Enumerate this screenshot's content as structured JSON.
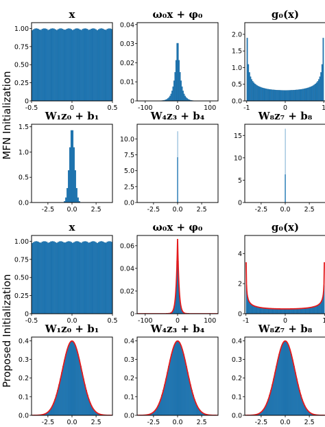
{
  "figure": {
    "row_labels": [
      "MFN Initialization",
      "Proposed Initialization"
    ],
    "colors": {
      "bar": "#1f77b4",
      "curve": "#e41a1c",
      "axis": "#000000"
    }
  },
  "chart_data": [
    {
      "type": "bar",
      "group": "MFN Initialization",
      "title": "x",
      "xlim": [
        -0.5,
        0.5
      ],
      "ylim": [
        0,
        1.08
      ],
      "xticks": [
        "-0.5",
        "0",
        "0.5"
      ],
      "xtick_values": [
        -0.5,
        0,
        0.5
      ],
      "yticks": [
        "0",
        "0.25",
        "0.50",
        "0.75",
        "1.00"
      ],
      "ytick_values": [
        0,
        0.25,
        0.5,
        0.75,
        1.0
      ],
      "distribution": "uniform",
      "height": 1.0,
      "range": [
        -0.5,
        0.5
      ],
      "overlay_curve": false
    },
    {
      "type": "bar",
      "group": "MFN Initialization",
      "title": "ω₀x + φ₀",
      "xlim": [
        -125,
        125
      ],
      "ylim": [
        0,
        0.041
      ],
      "xticks": [
        "-100",
        "0",
        "100"
      ],
      "xtick_values": [
        -100,
        0,
        100
      ],
      "yticks": [
        "0",
        "0.01",
        "0.02",
        "0.03",
        "0.04"
      ],
      "ytick_values": [
        0,
        0.01,
        0.02,
        0.03,
        0.04
      ],
      "distribution": "laplace-like",
      "peak": 0.036,
      "scale": 9,
      "overlay_curve": false
    },
    {
      "type": "bar",
      "group": "MFN Initialization",
      "title": "g₀(x)",
      "xlim": [
        -1.05,
        1.05
      ],
      "ylim": [
        0,
        2.35
      ],
      "xticks": [
        "-1",
        "0",
        "1"
      ],
      "xtick_values": [
        -1,
        0,
        1
      ],
      "yticks": [
        "0.0",
        "0.5",
        "1.0",
        "1.5",
        "2.0"
      ],
      "ytick_values": [
        0,
        0.5,
        1.0,
        1.5,
        2.0
      ],
      "distribution": "arcsine",
      "peak": 2.3,
      "overlay_curve": false
    },
    {
      "type": "bar",
      "group": "MFN Initialization",
      "title": "W₁z₀ + b₁",
      "xlim": [
        -4.2,
        4.2
      ],
      "ylim": [
        0,
        1.55
      ],
      "xticks": [
        "-2.5",
        "0.0",
        "2.5"
      ],
      "xtick_values": [
        -2.5,
        0,
        2.5
      ],
      "yticks": [
        "0.0",
        "0.5",
        "1.0",
        "1.5"
      ],
      "ytick_values": [
        0,
        0.5,
        1.0,
        1.5
      ],
      "distribution": "gaussian",
      "mean": 0,
      "std": 0.27,
      "overlay_curve": false
    },
    {
      "type": "bar",
      "group": "MFN Initialization",
      "title": "W₄z₃ + b₄",
      "xlim": [
        -4.2,
        4.2
      ],
      "ylim": [
        0,
        12.3
      ],
      "xticks": [
        "-2.5",
        "0.0",
        "2.5"
      ],
      "xtick_values": [
        -2.5,
        0,
        2.5
      ],
      "yticks": [
        "0.0",
        "2.5",
        "5.0",
        "7.5",
        "10.0"
      ],
      "ytick_values": [
        0,
        2.5,
        5,
        7.5,
        10
      ],
      "distribution": "spike",
      "mean": 0,
      "std": 0.035,
      "peak": 11.2,
      "overlay_curve": false
    },
    {
      "type": "bar",
      "group": "MFN Initialization",
      "title": "W₈z₇ + b₈",
      "xlim": [
        -4.2,
        4.2
      ],
      "ylim": [
        0,
        17.5
      ],
      "xticks": [
        "-2.5",
        "0.0",
        "2.5"
      ],
      "xtick_values": [
        -2.5,
        0,
        2.5
      ],
      "yticks": [
        "0",
        "5",
        "10",
        "15"
      ],
      "ytick_values": [
        0,
        5,
        10,
        15
      ],
      "distribution": "spike",
      "mean": 0,
      "std": 0.024,
      "peak": 16.5,
      "overlay_curve": false
    },
    {
      "type": "bar",
      "group": "Proposed Initialization",
      "title": "x",
      "xlim": [
        -0.5,
        0.5
      ],
      "ylim": [
        0,
        1.08
      ],
      "xticks": [
        "-0.5",
        "0.0",
        "0.5"
      ],
      "xtick_values": [
        -0.5,
        0,
        0.5
      ],
      "yticks": [
        "0",
        "0.25",
        "0.50",
        "0.75",
        "1.00"
      ],
      "ytick_values": [
        0,
        0.25,
        0.5,
        0.75,
        1.0
      ],
      "distribution": "uniform",
      "height": 1.0,
      "range": [
        -0.5,
        0.5
      ],
      "overlay_curve": false
    },
    {
      "type": "bar",
      "group": "Proposed Initialization",
      "title": "ω₀x + φ₀",
      "xlim": [
        -125,
        125
      ],
      "ylim": [
        0,
        0.069
      ],
      "xticks": [
        "-100",
        "0",
        "100"
      ],
      "xtick_values": [
        -100,
        0,
        100
      ],
      "yticks": [
        "0",
        "0.02",
        "0.04",
        "0.06"
      ],
      "ytick_values": [
        0,
        0.02,
        0.04,
        0.06
      ],
      "distribution": "laplace-like",
      "peak": 0.066,
      "scale": 4.5,
      "overlay_curve": true
    },
    {
      "type": "bar",
      "group": "Proposed Initialization",
      "title": "g₀(x)",
      "xlim": [
        -1.03,
        1.03
      ],
      "ylim": [
        0,
        5.2
      ],
      "xticks": [
        "-1",
        "0",
        "1"
      ],
      "xtick_values": [
        -1,
        0,
        1
      ],
      "yticks": [
        "0",
        "2",
        "4"
      ],
      "ytick_values": [
        0,
        2,
        4
      ],
      "distribution": "arcsine",
      "peak": 5.0,
      "overlay_curve": true
    },
    {
      "type": "bar",
      "group": "Proposed Initialization",
      "title": "W₁z₀ + b₁",
      "xlim": [
        -4.2,
        4.2
      ],
      "ylim": [
        0,
        0.42
      ],
      "xticks": [
        "-2.5",
        "0.0",
        "2.5"
      ],
      "xtick_values": [
        -2.5,
        0,
        2.5
      ],
      "yticks": [
        "0.0",
        "0.1",
        "0.2",
        "0.3",
        "0.4"
      ],
      "ytick_values": [
        0,
        0.1,
        0.2,
        0.3,
        0.4
      ],
      "distribution": "gaussian",
      "mean": 0,
      "std": 1,
      "overlay_curve": true
    },
    {
      "type": "bar",
      "group": "Proposed Initialization",
      "title": "W₄z₃ + b₄",
      "xlim": [
        -4.2,
        4.2
      ],
      "ylim": [
        0,
        0.42
      ],
      "xticks": [
        "-2.5",
        "0.0",
        "2.5"
      ],
      "xtick_values": [
        -2.5,
        0,
        2.5
      ],
      "yticks": [
        "0.0",
        "0.1",
        "0.2",
        "0.3",
        "0.4"
      ],
      "ytick_values": [
        0,
        0.1,
        0.2,
        0.3,
        0.4
      ],
      "distribution": "gaussian",
      "mean": 0,
      "std": 1,
      "overlay_curve": true
    },
    {
      "type": "bar",
      "group": "Proposed Initialization",
      "title": "W₈z₇ + b₈",
      "xlim": [
        -4.2,
        4.2
      ],
      "ylim": [
        0,
        0.42
      ],
      "xticks": [
        "-2.5",
        "0.0",
        "2.5"
      ],
      "xtick_values": [
        -2.5,
        0,
        2.5
      ],
      "yticks": [
        "0.0",
        "0.1",
        "0.2",
        "0.3",
        "0.4"
      ],
      "ytick_values": [
        0,
        0.1,
        0.2,
        0.3,
        0.4
      ],
      "distribution": "gaussian",
      "mean": 0,
      "std": 1,
      "overlay_curve": true
    }
  ]
}
